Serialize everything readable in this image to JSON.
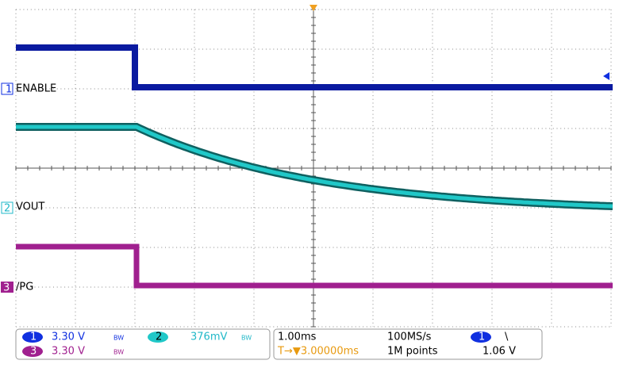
{
  "channels": [
    {
      "number": "1",
      "label": "ENABLE"
    },
    {
      "number": "2",
      "label": "VOUT"
    },
    {
      "number": "3",
      "label": "/PG"
    }
  ],
  "status": {
    "ch1_number": "1",
    "ch1_scale": "3.30 V",
    "ch1_bw": "BW",
    "ch2_number": "2",
    "ch2_scale": "376mV",
    "ch2_bw": "BW",
    "ch3_number": "3",
    "ch3_scale": "3.30 V",
    "ch3_bw": "BW",
    "timebase": "1.00ms",
    "sample_rate": "100MS/s",
    "trigger_source": "1",
    "trigger_slope": "\\",
    "trigger_position": "T→▼3.00000ms",
    "record_length": "1M points",
    "trigger_level": "1.06 V"
  }
}
